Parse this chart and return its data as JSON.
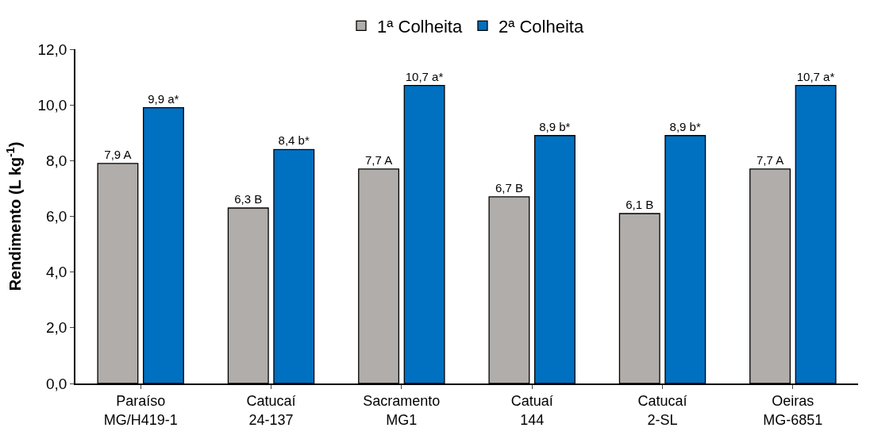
{
  "chart_data": {
    "type": "bar",
    "ylabel": "Rendimento (L kg$^{-1}$)",
    "categories": [
      "Paraíso\nMG/H419-1",
      "Catucaí\n24-137",
      "Sacramento\nMG1",
      "Catuaí\n144",
      "Catucaí\n2-SL",
      "Oeiras\nMG-6851"
    ],
    "series": [
      {
        "name": "1ª Colheita",
        "color": "#b1adab",
        "values": [
          7.9,
          6.3,
          7.7,
          6.7,
          6.1,
          7.7
        ],
        "value_labels": [
          "7,9 A",
          "6,3 B",
          "7,7 A",
          "6,7 B",
          "6,1 B",
          "7,7 A"
        ]
      },
      {
        "name": "2ª Colheita",
        "color": "#0070c0",
        "values": [
          9.9,
          8.4,
          10.7,
          8.9,
          8.9,
          10.7
        ],
        "value_labels": [
          "9,9 a*",
          "8,4 b*",
          "10,7 a*",
          "8,9 b*",
          "8,9 b*",
          "10,7 a*"
        ]
      }
    ],
    "ylim": [
      0,
      12
    ],
    "yticks": [
      {
        "value": 0,
        "label": "0,0"
      },
      {
        "value": 2,
        "label": "2,0"
      },
      {
        "value": 4,
        "label": "4,0"
      },
      {
        "value": 6,
        "label": "6,0"
      },
      {
        "value": 8,
        "label": "8,0"
      },
      {
        "value": 10,
        "label": "10,0"
      },
      {
        "value": 12,
        "label": "12,0"
      }
    ],
    "legend": "top"
  }
}
